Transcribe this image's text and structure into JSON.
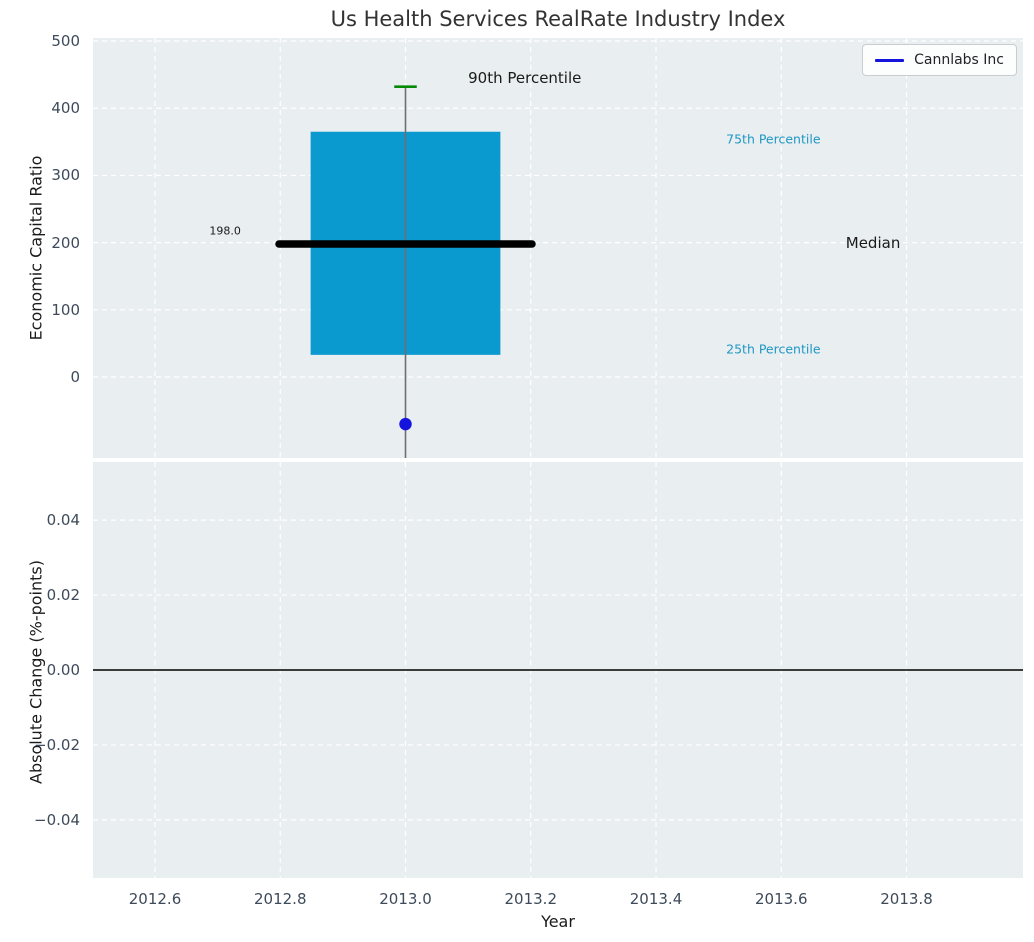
{
  "chart_data": {
    "type": "box",
    "title": "Us Health Services RealRate Industry Index",
    "xlabel": "Year",
    "grid": true,
    "legend": {
      "label": "Cannlabs Inc",
      "color": "#1414dc",
      "position": "upper right"
    },
    "x_axis": {
      "lim": [
        2012.501,
        2013.986
      ],
      "ticks": [
        {
          "v": 2012.6,
          "label": "2012.6"
        },
        {
          "v": 2012.8,
          "label": "2012.8"
        },
        {
          "v": 2013.0,
          "label": "2013.0"
        },
        {
          "v": 2013.2,
          "label": "2013.2"
        },
        {
          "v": 2013.4,
          "label": "2013.4"
        },
        {
          "v": 2013.6,
          "label": "2013.6"
        },
        {
          "v": 2013.8,
          "label": "2013.8"
        }
      ]
    },
    "panels": [
      {
        "name": "economic-capital-ratio",
        "ylabel": "Economic Capital Ratio",
        "lim": [
          -120.5,
          504.5
        ],
        "ticks": [
          {
            "v": 500,
            "label": "500"
          },
          {
            "v": 400,
            "label": "400"
          },
          {
            "v": 300,
            "label": "300"
          },
          {
            "v": 200,
            "label": "200"
          },
          {
            "v": 100,
            "label": "100"
          },
          {
            "v": 0,
            "label": "0"
          }
        ],
        "boxplot": {
          "x": 2013.0,
          "q1": 33,
          "median": 198,
          "q3": 365,
          "p90": 432,
          "whisker_low_extends_below_axis": true,
          "box_halfwidth": 0.1515,
          "median_halfwidth": 0.202,
          "cap_halfwidth": 0.018,
          "box_color": "#0a9acf",
          "median_color": "#000000",
          "whisker_color": "#6e6e6e",
          "cap_color": "#068a06"
        },
        "point": {
          "series": "Cannlabs Inc",
          "x": 2013.0,
          "y": -70,
          "color": "#1414dc",
          "radius": 6.2
        },
        "annotations": [
          {
            "text": "198.0",
            "x": 2012.712,
            "y": 217,
            "color": "#1a1a1a",
            "size": 11,
            "align": "center"
          },
          {
            "text": "90th Percentile",
            "x": 2013.1,
            "y": 445,
            "color": "#1a1a1a",
            "size": 15,
            "align": "left"
          },
          {
            "text": "75th Percentile",
            "x": 2013.512,
            "y": 354,
            "color": "#1f97c6",
            "size": 12.5,
            "align": "left"
          },
          {
            "text": "Median",
            "x": 2013.703,
            "y": 199,
            "color": "#1a1a1a",
            "size": 15,
            "align": "left"
          },
          {
            "text": "25th Percentile",
            "x": 2013.512,
            "y": 42,
            "color": "#1f97c6",
            "size": 12.5,
            "align": "left"
          }
        ]
      },
      {
        "name": "absolute-change",
        "ylabel": "Absolute Change (%-points)",
        "lim": [
          -0.0555,
          0.0555
        ],
        "ticks": [
          {
            "v": 0.04,
            "label": "0.04"
          },
          {
            "v": 0.02,
            "label": "0.02"
          },
          {
            "v": 0.0,
            "label": "0.00"
          },
          {
            "v": -0.02,
            "label": "−0.02"
          },
          {
            "v": -0.04,
            "label": "−0.04"
          }
        ],
        "zero_line": {
          "y": 0.0,
          "color": "#000000",
          "width": 1.6
        }
      }
    ]
  }
}
